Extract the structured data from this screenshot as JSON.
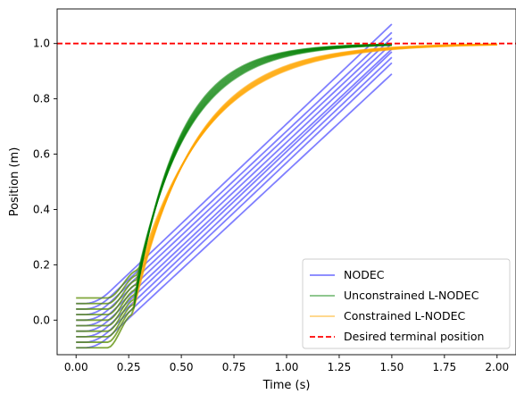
{
  "chart_data": {
    "type": "line",
    "title": "",
    "xlabel": "Time (s)",
    "ylabel": "Position (m)",
    "xlim": [
      -0.09,
      2.09
    ],
    "ylim": [
      -0.125,
      1.125
    ],
    "xticks": [
      0.0,
      0.25,
      0.5,
      0.75,
      1.0,
      1.25,
      1.5,
      1.75,
      2.0
    ],
    "xtick_labels": [
      "0.00",
      "0.25",
      "0.50",
      "0.75",
      "1.00",
      "1.25",
      "1.50",
      "1.75",
      "2.00"
    ],
    "yticks": [
      0.0,
      0.2,
      0.4,
      0.6,
      0.8,
      1.0
    ],
    "ytick_labels": [
      "0.0",
      "0.2",
      "0.4",
      "0.6",
      "0.8",
      "1.0"
    ],
    "grid": false,
    "legend_position": "lower-right",
    "series": [
      {
        "name": "NODEC",
        "color": "#0000ff",
        "opacity": 0.5,
        "style": "solid",
        "initial_positions": [
          -0.1,
          -0.08,
          -0.06,
          -0.04,
          -0.02,
          0.0,
          0.02,
          0.04,
          0.06
        ],
        "end_time": 1.5,
        "end_positions": [
          0.89,
          0.93,
          0.95,
          0.97,
          0.98,
          1.0,
          1.02,
          1.04,
          1.07
        ]
      },
      {
        "name": "Unconstrained L-NODEC",
        "color": "#008000",
        "opacity": 0.5,
        "style": "solid",
        "initial_positions": [
          -0.1,
          -0.08,
          -0.06,
          -0.04,
          -0.02,
          0.0,
          0.02,
          0.04,
          0.06,
          0.08
        ],
        "end_time": 1.5,
        "final_value": 1.0
      },
      {
        "name": "Constrained L-NODEC",
        "color": "#ffa500",
        "opacity": 0.5,
        "style": "solid",
        "initial_positions": [
          -0.1,
          -0.08,
          -0.06,
          -0.04,
          -0.02,
          0.0,
          0.02,
          0.04,
          0.06,
          0.08
        ],
        "end_time": 2.0,
        "final_value": 1.0
      },
      {
        "name": "Desired terminal position",
        "color": "#ff0000",
        "opacity": 1.0,
        "style": "dashed",
        "value": 1.0
      }
    ]
  }
}
